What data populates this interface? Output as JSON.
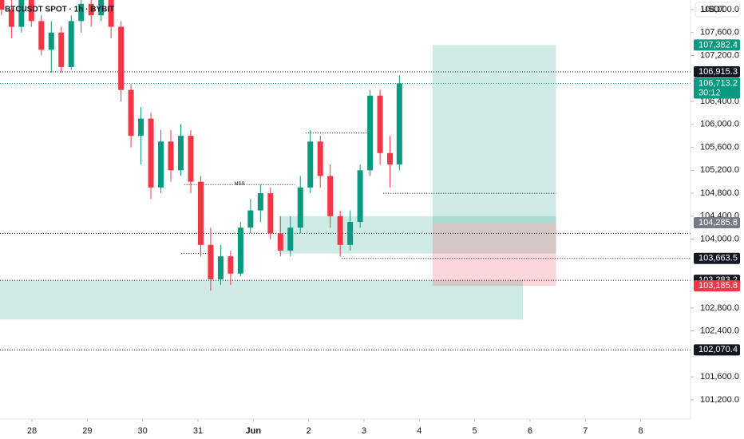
{
  "chart_data": {
    "type": "candlestick",
    "title": "BTCUSDT SPOT · 1h · BYBIT",
    "currency": "USDT",
    "up_color": "#089981",
    "down_color": "#f23645",
    "xlim": [
      -0.577,
      11.9
    ],
    "ylim": [
      100865,
      108167
    ],
    "xticks": [
      {
        "value": 0,
        "label": "28"
      },
      {
        "value": 1,
        "label": "29"
      },
      {
        "value": 2,
        "label": "30"
      },
      {
        "value": 3,
        "label": "31"
      },
      {
        "value": 4,
        "label": "Jun"
      },
      {
        "value": 5,
        "label": "2"
      },
      {
        "value": 6,
        "label": "3"
      },
      {
        "value": 7,
        "label": "4"
      },
      {
        "value": 8,
        "label": "5"
      },
      {
        "value": 9,
        "label": "6"
      },
      {
        "value": 10,
        "label": "7"
      },
      {
        "value": 11,
        "label": "8"
      }
    ],
    "yticks": [
      {
        "value": 108000,
        "label": "108,000.0"
      },
      {
        "value": 107600,
        "label": "107,600.0"
      },
      {
        "value": 107200,
        "label": "107,200.0"
      },
      {
        "value": 106400,
        "label": "106,400.0"
      },
      {
        "value": 106000,
        "label": "106,000.0"
      },
      {
        "value": 105600,
        "label": "105,600.0"
      },
      {
        "value": 105200,
        "label": "105,200.0"
      },
      {
        "value": 104800,
        "label": "104,800.0"
      },
      {
        "value": 104400,
        "label": "104,400.0"
      },
      {
        "value": 104000,
        "label": "104,000.0"
      },
      {
        "value": 102800,
        "label": "102,800.0"
      },
      {
        "value": 102400,
        "label": "102,400.0"
      },
      {
        "value": 101600,
        "label": "101,600.0"
      },
      {
        "value": 101200,
        "label": "101,200.0"
      }
    ],
    "x": [
      -0.55,
      -0.37,
      -0.19,
      -0.01,
      0.17,
      0.35,
      0.53,
      0.71,
      0.89,
      1.07,
      1.25,
      1.43,
      1.61,
      1.79,
      1.97,
      2.15,
      2.33,
      2.51,
      2.69,
      2.87,
      3.05,
      3.23,
      3.41,
      3.59,
      3.77,
      3.95,
      4.13,
      4.31,
      4.49,
      4.67,
      4.85,
      5.03,
      5.21,
      5.39,
      5.57,
      5.75,
      5.93,
      6.11,
      6.29,
      6.47,
      6.64
    ],
    "open": [
      108300,
      108000,
      107700,
      108200,
      107800,
      107300,
      107600,
      107000,
      107800,
      108100,
      107900,
      108400,
      107700,
      106600,
      105800,
      106100,
      104900,
      105700,
      105200,
      105800,
      105000,
      103900,
      103300,
      103700,
      103400,
      104200,
      104500,
      104800,
      104100,
      103800,
      104200,
      104900,
      105700,
      105100,
      104400,
      103900,
      104300,
      105200,
      106500,
      105500,
      105300
    ],
    "high": [
      108600,
      108200,
      108400,
      108300,
      107900,
      107800,
      107700,
      107900,
      108300,
      108500,
      108600,
      108500,
      107800,
      106700,
      106300,
      106200,
      105900,
      105900,
      106000,
      105900,
      105100,
      104200,
      103900,
      103800,
      104300,
      104700,
      104950,
      104900,
      104400,
      104400,
      105100,
      105900,
      105800,
      105300,
      104500,
      104500,
      105300,
      106600,
      106600,
      105800,
      106850
    ],
    "low": [
      107900,
      107500,
      107600,
      107700,
      107200,
      106900,
      106900,
      106950,
      107600,
      107700,
      107800,
      107500,
      106400,
      105600,
      105300,
      104700,
      104800,
      105000,
      105100,
      104800,
      103700,
      103100,
      103200,
      103200,
      103350,
      104100,
      104300,
      104000,
      103700,
      103700,
      104100,
      104800,
      104900,
      104200,
      103700,
      103800,
      104200,
      105100,
      105300,
      104900,
      105200
    ],
    "close": [
      108000,
      107700,
      108200,
      107800,
      107300,
      107600,
      107000,
      107800,
      108100,
      107900,
      108400,
      107700,
      106600,
      105800,
      106100,
      104900,
      105700,
      105200,
      105800,
      105000,
      103900,
      103300,
      103700,
      103400,
      104200,
      104500,
      104800,
      104100,
      103800,
      104200,
      104900,
      105700,
      105100,
      104400,
      103900,
      104300,
      105200,
      106500,
      105500,
      105300,
      106713.2
    ],
    "levels": [
      {
        "price": 106915.3,
        "x0": -0.577,
        "x1": 11.9,
        "color": "#131722"
      },
      {
        "price": 106713.2,
        "x0": -0.577,
        "x1": 11.9,
        "color": "#089981"
      },
      {
        "price": 104100,
        "x0": -0.577,
        "x1": 11.9,
        "color": "#131722"
      },
      {
        "price": 103663.5,
        "x0": 5.6,
        "x1": 11.9,
        "color": "#131722"
      },
      {
        "price": 103283.2,
        "x0": -0.577,
        "x1": 11.9,
        "color": "#131722"
      },
      {
        "price": 102070.4,
        "x0": -0.577,
        "x1": 11.9,
        "color": "#131722"
      },
      {
        "price": 104950,
        "x0": 2.75,
        "x1": 4.75,
        "color": "#131722"
      },
      {
        "price": 105850,
        "x0": 4.95,
        "x1": 6.1,
        "color": "#131722"
      },
      {
        "price": 104800,
        "x0": 6.35,
        "x1": 9.47,
        "color": "#131722"
      },
      {
        "price": 103750,
        "x0": 2.7,
        "x1": 3.2,
        "color": "#131722"
      }
    ],
    "annotation": {
      "text": "MSS",
      "x": 3.75,
      "price": 104950
    },
    "zones": [
      {
        "x0": -0.577,
        "x1": 8.87,
        "top": 103283.2,
        "bottom": 102600,
        "color": "rgba(8,153,129,0.2)"
      },
      {
        "x0": 4.47,
        "x1": 9.47,
        "top": 104400,
        "bottom": 103750,
        "color": "rgba(8,153,129,0.2)"
      }
    ],
    "position": {
      "x0": 7.24,
      "x1": 9.47,
      "entry": 104285.8,
      "target": 107382.4,
      "stop": 103185.8,
      "target_color": "rgba(8,153,129,0.2)",
      "stop_color": "rgba(242,54,69,0.2)"
    },
    "price_tags": [
      {
        "value": 107382.4,
        "label": "107,382.4",
        "color": "#089981"
      },
      {
        "value": 106915.3,
        "label": "106,915.3",
        "color": "#131722"
      },
      {
        "value": 106713.2,
        "label": "106,713.2",
        "color": "#089981",
        "countdown": "30:12"
      },
      {
        "value": 104285.8,
        "label": "104,285.8",
        "color": "#787b86"
      },
      {
        "value": 103663.5,
        "label": "103,663.5",
        "color": "#131722"
      },
      {
        "value": 103283.2,
        "label": "103,283.2",
        "color": "#131722"
      },
      {
        "value": 103185.8,
        "label": "103,185.8",
        "color": "#f23645"
      },
      {
        "value": 102070.4,
        "label": "102,070.4",
        "color": "#131722"
      }
    ]
  }
}
